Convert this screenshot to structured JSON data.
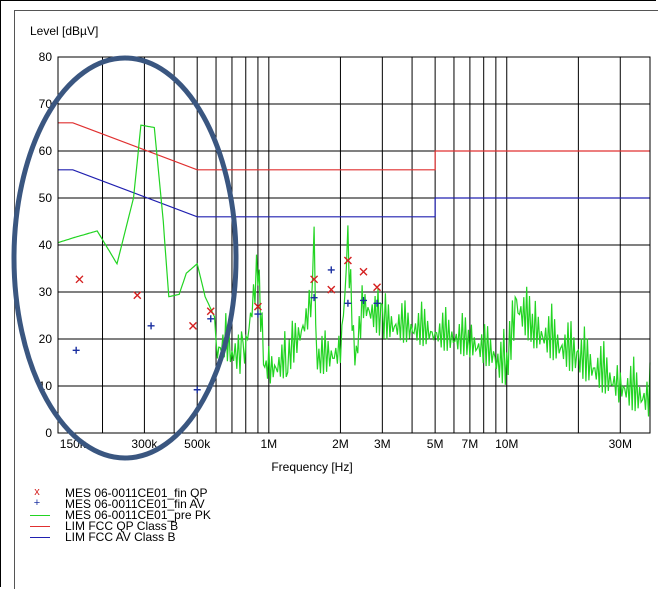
{
  "chart_data": {
    "type": "line",
    "ylabel": "Level [dBµV]",
    "xlabel": "Frequency [Hz]",
    "xscale": "log",
    "xlim": [
      130000,
      40000000
    ],
    "ylim": [
      0,
      80
    ],
    "yticks": [
      0,
      10,
      20,
      30,
      40,
      50,
      60,
      70,
      80
    ],
    "ytick_labels": [
      "0",
      "10",
      "20",
      "30",
      "40",
      "50",
      "60",
      "70",
      "80"
    ],
    "xticks": [
      {
        "label": "150k",
        "value": 150000
      },
      {
        "label": "300k",
        "value": 300000
      },
      {
        "label": "500k",
        "value": 500000
      },
      {
        "label": "1M",
        "value": 1000000
      },
      {
        "label": "2M",
        "value": 2000000
      },
      {
        "label": "3M",
        "value": 3000000
      },
      {
        "label": "5M",
        "value": 5000000
      },
      {
        "label": "7M",
        "value": 7000000
      },
      {
        "label": "10M",
        "value": 10000000
      },
      {
        "label": "30M",
        "value": 30000000
      }
    ],
    "grid": true,
    "legend_position": "bottom",
    "series": [
      {
        "name": "MES 06-0011CE01_fin QP",
        "kind": "markers",
        "marker": "x",
        "color": "#d42020",
        "points": [
          [
            160000,
            32.7
          ],
          [
            280000,
            29.3
          ],
          [
            480000,
            22.8
          ],
          [
            570000,
            25.9
          ],
          [
            900000,
            26.9
          ],
          [
            1550000,
            32.7
          ],
          [
            1830000,
            30.5
          ],
          [
            2150000,
            36.7
          ],
          [
            2500000,
            34.3
          ],
          [
            2850000,
            31.0
          ]
        ]
      },
      {
        "name": "MES 06-0011CE01_fin AV",
        "kind": "markers",
        "marker": "+",
        "color": "#1a2fa0",
        "points": [
          [
            155000,
            17.6
          ],
          [
            320000,
            22.8
          ],
          [
            500000,
            9.2
          ],
          [
            570000,
            24.3
          ],
          [
            900000,
            25.3
          ],
          [
            1550000,
            28.8
          ],
          [
            1830000,
            34.7
          ],
          [
            2150000,
            27.6
          ],
          [
            2500000,
            28.2
          ],
          [
            2850000,
            27.6
          ]
        ]
      },
      {
        "name": "MES 06-0011CE01_pre PK",
        "kind": "line",
        "color": "#22d422",
        "points": [
          [
            130000,
            40.5
          ],
          [
            150000,
            41.5
          ],
          [
            190000,
            43
          ],
          [
            230000,
            36
          ],
          [
            270000,
            50
          ],
          [
            290000,
            65.5
          ],
          [
            330000,
            65
          ],
          [
            360000,
            45
          ],
          [
            380000,
            29
          ],
          [
            420000,
            29.5
          ],
          [
            450000,
            34
          ],
          [
            500000,
            36
          ],
          [
            540000,
            29
          ],
          [
            600000,
            24
          ],
          [
            650000,
            26
          ],
          [
            700000,
            24
          ],
          [
            780000,
            22
          ],
          [
            900000,
            41
          ],
          [
            950000,
            22
          ],
          [
            1000000,
            20
          ],
          [
            1200000,
            22
          ],
          [
            1500000,
            33
          ],
          [
            1550000,
            44
          ],
          [
            1600000,
            22
          ],
          [
            2000000,
            24
          ],
          [
            2150000,
            45.5
          ],
          [
            2300000,
            22
          ],
          [
            2500000,
            34
          ],
          [
            3000000,
            30
          ],
          [
            5000000,
            28
          ],
          [
            7000000,
            26
          ],
          [
            10000000,
            22
          ],
          [
            11000000,
            35
          ],
          [
            13000000,
            30
          ],
          [
            20000000,
            24
          ],
          [
            30000000,
            18
          ],
          [
            40000000,
            15
          ]
        ]
      },
      {
        "name": "LIM FCC QP Class B",
        "kind": "line",
        "color": "#e03030",
        "points": [
          [
            130000,
            66
          ],
          [
            150000,
            66
          ],
          [
            500000,
            56
          ],
          [
            5000000,
            56
          ],
          [
            5000000,
            60
          ],
          [
            40000000,
            60
          ]
        ]
      },
      {
        "name": "LIM FCC AV Class B",
        "kind": "line",
        "color": "#2020b0",
        "points": [
          [
            130000,
            56
          ],
          [
            150000,
            56
          ],
          [
            500000,
            46
          ],
          [
            5000000,
            46
          ],
          [
            5000000,
            50
          ],
          [
            40000000,
            50
          ]
        ]
      }
    ]
  },
  "legend": [
    {
      "symbol": "x",
      "label": "MES  06-0011CE01_fin QP",
      "color": "#d42020"
    },
    {
      "symbol": "+",
      "label": "MES  06-0011CE01_fin AV",
      "color": "#1a2fa0"
    },
    {
      "symbol": "line",
      "label": "MES  06-0011CE01_pre PK",
      "color": "#22d422"
    },
    {
      "symbol": "line",
      "label": "LIM  FCC QP Class B",
      "color": "#e03030"
    },
    {
      "symbol": "line",
      "label": "LIM  FCC AV Class B",
      "color": "#2020b0"
    }
  ],
  "annotation": {
    "shape": "ellipse",
    "color": "#3a5680"
  }
}
